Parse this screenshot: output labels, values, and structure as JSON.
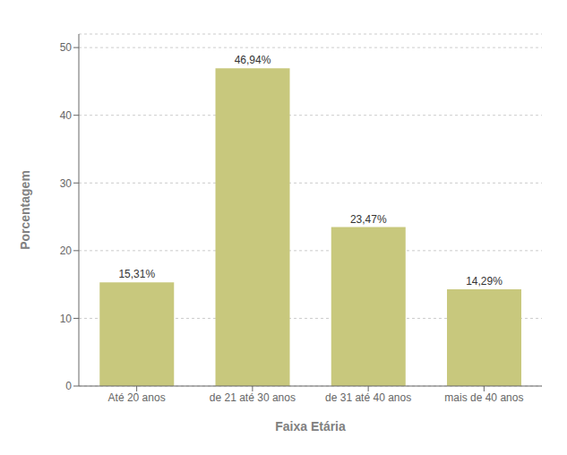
{
  "chart_data": {
    "type": "bar",
    "categories": [
      "Até 20 anos",
      "de 21 até 30 anos",
      "de 31 até 40 anos",
      "mais de 40 anos"
    ],
    "values": [
      15.31,
      46.94,
      23.47,
      14.29
    ],
    "value_labels": [
      "15,31%",
      "46,94%",
      "23,47%",
      "14,29%"
    ],
    "color": "#c8c87d",
    "xlabel": "Faixa Etária",
    "ylabel": "Porcentagem",
    "ylim": [
      0,
      52
    ],
    "yticks": [
      0,
      10,
      20,
      30,
      40,
      50
    ],
    "grid": true
  }
}
